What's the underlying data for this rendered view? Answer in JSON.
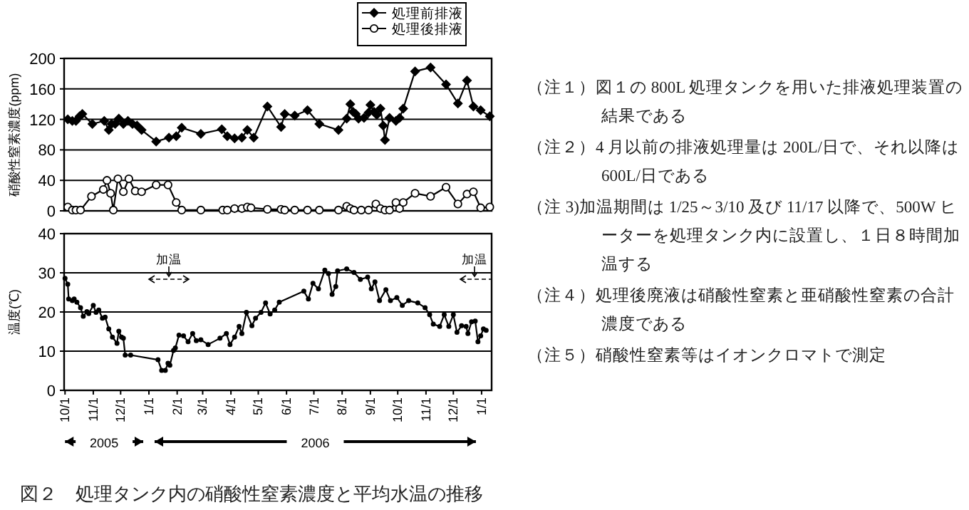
{
  "chart_data": [
    {
      "type": "line",
      "ylabel": "硝酸性窒素濃度(ppm)",
      "xlim": [
        "2005-09-30",
        "2007-01-12"
      ],
      "ylim": [
        0,
        200
      ],
      "yticks": [
        0,
        40,
        80,
        120,
        160,
        200
      ],
      "grid": "y",
      "legend": "top right",
      "tick_labels": "y",
      "line_style": "solid",
      "series": [
        {
          "name": "処理前排液",
          "color": "#000000",
          "marker": "diamond",
          "x": [
            "2005-10-04",
            "2005-10-09",
            "2005-10-13",
            "2005-10-17",
            "2005-10-20",
            "2005-10-31",
            "2005-11-13",
            "2005-11-18",
            "2005-11-21",
            "2005-11-25",
            "2005-11-29",
            "2005-12-04",
            "2005-12-09",
            "2005-12-14",
            "2005-12-19",
            "2005-12-24",
            "2006-01-09",
            "2006-01-23",
            "2006-01-31",
            "2006-02-06",
            "2006-02-27",
            "2006-03-22",
            "2006-03-28",
            "2006-04-05",
            "2006-04-13",
            "2006-04-19",
            "2006-04-26",
            "2006-05-11",
            "2006-05-26",
            "2006-05-30",
            "2006-06-10",
            "2006-06-24",
            "2006-07-07",
            "2006-07-28",
            "2006-08-06",
            "2006-08-10",
            "2006-08-13",
            "2006-08-16",
            "2006-08-19",
            "2006-08-25",
            "2006-08-30",
            "2006-09-01",
            "2006-09-05",
            "2006-09-08",
            "2006-09-12",
            "2006-09-15",
            "2006-09-17",
            "2006-09-22",
            "2006-09-29",
            "2006-10-03",
            "2006-10-07",
            "2006-10-20",
            "2006-11-06",
            "2006-11-23",
            "2006-12-06",
            "2006-12-16",
            "2006-12-23",
            "2006-12-31",
            "2007-01-10"
          ],
          "values": [
            120,
            118,
            118,
            124,
            127,
            114,
            118,
            106,
            114,
            114,
            121,
            114,
            118,
            114,
            112,
            106,
            91,
            96,
            98,
            109,
            101,
            107,
            98,
            95,
            96,
            106,
            96,
            137,
            110,
            127,
            125,
            132,
            114,
            106,
            121,
            140,
            130,
            127,
            121,
            122,
            129,
            139,
            130,
            126,
            134,
            112,
            93,
            122,
            118,
            122,
            134,
            183,
            188,
            166,
            141,
            171,
            137,
            132,
            124
          ]
        },
        {
          "name": "処理後排液",
          "color": "#000000",
          "marker": "circle",
          "x": [
            "2005-10-04",
            "2005-10-09",
            "2005-10-13",
            "2005-10-18",
            "2005-10-30",
            "2005-11-12",
            "2005-11-16",
            "2005-11-20",
            "2005-11-23",
            "2005-11-28",
            "2005-12-04",
            "2005-12-10",
            "2005-12-17",
            "2005-12-24",
            "2006-01-09",
            "2006-01-22",
            "2006-01-31",
            "2006-02-06",
            "2006-02-27",
            "2006-03-23",
            "2006-03-28",
            "2006-04-05",
            "2006-04-13",
            "2006-04-19",
            "2006-04-23",
            "2006-05-11",
            "2006-05-26",
            "2006-05-30",
            "2006-06-10",
            "2006-06-24",
            "2006-07-07",
            "2006-07-28",
            "2006-08-06",
            "2006-08-10",
            "2006-08-14",
            "2006-08-22",
            "2006-08-30",
            "2006-09-07",
            "2006-09-12",
            "2006-09-17",
            "2006-09-22",
            "2006-09-29",
            "2006-10-03",
            "2006-10-07",
            "2006-10-20",
            "2006-11-06",
            "2006-11-23",
            "2006-12-06",
            "2006-12-16",
            "2006-12-23",
            "2006-12-31",
            "2007-01-10"
          ],
          "values": [
            5,
            1,
            1,
            1,
            19,
            28,
            40,
            23,
            1,
            42,
            25,
            42,
            26,
            25,
            34,
            34,
            11,
            1,
            1,
            1,
            1,
            3,
            3,
            5,
            4,
            2,
            2,
            1,
            1,
            1,
            1,
            1,
            6,
            3,
            1,
            1,
            1,
            9,
            3,
            1,
            1,
            11,
            3,
            11,
            23,
            19,
            31,
            9,
            22,
            25,
            4,
            5
          ]
        }
      ]
    },
    {
      "type": "line",
      "ylabel": "温度(℃)",
      "xlim": [
        "2005-09-30",
        "2007-01-12"
      ],
      "ylim": [
        0,
        40
      ],
      "yticks": [
        0,
        10,
        20,
        30,
        40
      ],
      "grid": "y",
      "marker": "circle",
      "line_style": "solid",
      "xticks": [
        {
          "value": "2005-10-01",
          "label": "10/1"
        },
        {
          "value": "2005-11-01",
          "label": "11/1"
        },
        {
          "value": "2005-12-01",
          "label": "12/1"
        },
        {
          "value": "2006-01-01",
          "label": "1/1"
        },
        {
          "value": "2006-02-01",
          "label": "2/1"
        },
        {
          "value": "2006-03-01",
          "label": "3/1"
        },
        {
          "value": "2006-04-01",
          "label": "4/1"
        },
        {
          "value": "2006-05-01",
          "label": "5/1"
        },
        {
          "value": "2006-06-01",
          "label": "6/1"
        },
        {
          "value": "2006-07-01",
          "label": "7/1"
        },
        {
          "value": "2006-08-01",
          "label": "8/1"
        },
        {
          "value": "2006-09-01",
          "label": "9/1"
        },
        {
          "value": "2006-10-01",
          "label": "10/1"
        },
        {
          "value": "2006-11-01",
          "label": "11/1"
        },
        {
          "value": "2006-12-01",
          "label": "12/1"
        },
        {
          "value": "2007-01-01",
          "label": "1/1"
        }
      ],
      "annotations": [
        "加温",
        "加温",
        "2005",
        "2006"
      ],
      "series": [
        {
          "color": "#000000",
          "x": [
            "2005-10-01",
            "2005-10-04",
            "2005-10-05",
            "2005-10-09",
            "2005-10-11",
            "2005-10-14",
            "2005-10-18",
            "2005-10-21",
            "2005-10-25",
            "2005-10-27",
            "2005-11-01",
            "2005-11-04",
            "2005-11-07",
            "2005-11-11",
            "2005-11-14",
            "2005-11-18",
            "2005-11-22",
            "2005-11-27",
            "2005-11-29",
            "2005-12-02",
            "2005-12-04",
            "2005-12-06",
            "2005-12-12",
            "2006-01-11",
            "2006-01-15",
            "2006-01-19",
            "2006-01-22",
            "2006-01-24",
            "2006-01-28",
            "2006-01-30",
            "2006-02-03",
            "2006-02-08",
            "2006-02-13",
            "2006-02-18",
            "2006-02-22",
            "2006-02-27",
            "2006-03-07",
            "2006-03-20",
            "2006-03-27",
            "2006-03-31",
            "2006-04-05",
            "2006-04-10",
            "2006-04-13",
            "2006-04-18",
            "2006-04-24",
            "2006-04-28",
            "2006-05-04",
            "2006-05-09",
            "2006-05-14",
            "2006-05-19",
            "2006-05-24",
            "2006-06-20",
            "2006-06-25",
            "2006-06-30",
            "2006-07-06",
            "2006-07-13",
            "2006-07-17",
            "2006-07-21",
            "2006-07-25",
            "2006-07-27",
            "2006-08-06",
            "2006-08-14",
            "2006-08-21",
            "2006-08-29",
            "2006-09-02",
            "2006-09-06",
            "2006-09-11",
            "2006-09-18",
            "2006-09-23",
            "2006-09-30",
            "2006-10-06",
            "2006-10-13",
            "2006-10-23",
            "2006-10-31",
            "2006-11-05",
            "2006-11-09",
            "2006-11-16",
            "2006-11-21",
            "2006-11-26",
            "2006-12-01",
            "2006-12-05",
            "2006-12-10",
            "2006-12-15",
            "2006-12-17",
            "2006-12-21",
            "2006-12-25",
            "2006-12-28",
            "2006-12-31",
            "2007-01-03",
            "2007-01-06"
          ],
          "values": [
            28.6,
            27.1,
            23.3,
            22.9,
            23.3,
            22.5,
            21.1,
            18.9,
            20.1,
            19.6,
            21.7,
            19.9,
            20.5,
            18.4,
            18.7,
            15.7,
            13.6,
            12.0,
            15.1,
            13.6,
            13.3,
            9.0,
            9.0,
            7.8,
            5.1,
            5.1,
            6.9,
            6.4,
            10.2,
            10.8,
            14.1,
            13.9,
            12.4,
            14.5,
            12.7,
            12.9,
            11.7,
            13.3,
            14.5,
            11.7,
            13.6,
            16.3,
            14.5,
            19.9,
            16.5,
            18.4,
            19.9,
            22.3,
            19.5,
            20.5,
            22.5,
            25.3,
            23.3,
            27.3,
            25.9,
            30.7,
            29.8,
            24.5,
            26.5,
            30.5,
            31.0,
            30.1,
            28.3,
            28.9,
            25.9,
            27.7,
            22.9,
            25.7,
            22.9,
            23.7,
            21.7,
            22.9,
            22.3,
            21.1,
            19.3,
            16.9,
            16.3,
            19.3,
            16.3,
            19.3,
            14.8,
            16.5,
            16.3,
            14.5,
            17.5,
            17.7,
            12.4,
            13.9,
            15.7,
            15.3
          ]
        }
      ]
    },
    {
      "type": "other",
      "annotations": [
        "（注１）図１の 800L 処理タンクを用いた排液処理装置の結果である",
        "（注２）4 月以前の排液処理量は 200L/日で、それ以降は 600L/日である",
        "（注 3)加温期間は 1/25～3/10 及び 11/17 以降で、500W ヒーターを処理タンク内に設置し、１日８時間加温する",
        "（注４）処理後廃液は硝酸性窒素と亜硝酸性窒素の合計濃度である",
        "（注５）硝酸性窒素等はイオンクロマトで測定",
        "図２　処理タンク内の硝酸性窒素濃度と平均水温の推移"
      ]
    }
  ]
}
